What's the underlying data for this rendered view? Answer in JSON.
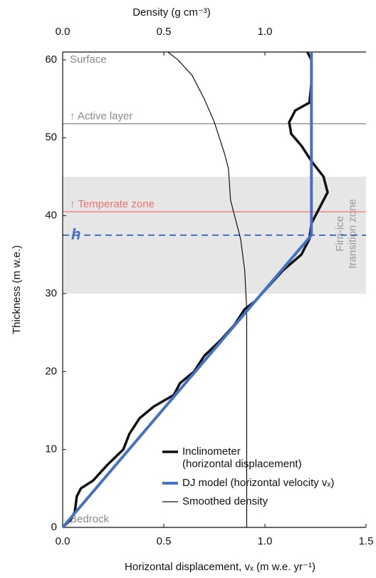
{
  "chart_data": {
    "type": "line",
    "xlabel": "Horizontal displacement, vₓ (m w.e. yr⁻¹)",
    "x2label": "Density (g cm⁻³)",
    "ylabel": "Thickness (m w.e.)",
    "xlim": [
      0,
      1.5
    ],
    "xticks": [
      {
        "value": 0,
        "label": "0.0"
      },
      {
        "value": 0.5,
        "label": "0.5"
      },
      {
        "value": 1,
        "label": "1.0"
      },
      {
        "value": 1.5,
        "label": "1.5"
      }
    ],
    "x2lim": [
      0,
      1.5
    ],
    "x2ticks": [
      {
        "value": 0,
        "label": "0.0"
      },
      {
        "value": 0.5,
        "label": "0.5"
      },
      {
        "value": 1,
        "label": "1.0"
      }
    ],
    "ylim": [
      0,
      61
    ],
    "yticks": [
      0,
      10,
      20,
      30,
      40,
      50,
      60
    ],
    "band": {
      "y": [
        30,
        45
      ],
      "color": "#e6e6e6",
      "label": "Firn-ice\ntransition zone"
    },
    "hlines": [
      {
        "label": "↑ Active layer",
        "y": 51.8,
        "color": "#888888"
      },
      {
        "label": "↑ Temperate zone",
        "y": 40.5,
        "color": "#f07070"
      },
      {
        "label": "h",
        "y": 37.5,
        "color": "#4472c4",
        "dashed": true
      }
    ],
    "annotations": [
      {
        "text": "Surface",
        "y": 60
      },
      {
        "text": "Bedrock",
        "y": 1
      }
    ],
    "series": [
      {
        "name": "Inclinometer\n(horizontal displacement)",
        "color": "#111111",
        "width": 3.5,
        "x": [
          0,
          0.04,
          0.06,
          0.07,
          0.09,
          0.15,
          0.22,
          0.3,
          0.33,
          0.38,
          0.45,
          0.55,
          0.58,
          0.65,
          0.7,
          0.78,
          0.85,
          0.9,
          0.95,
          1.02,
          1.09,
          1.18,
          1.22,
          1.23,
          1.27,
          1.31,
          1.29,
          1.23,
          1.18,
          1.13,
          1.12,
          1.15,
          1.22,
          1.23,
          1.23,
          1.21
        ],
        "values": [
          0,
          1,
          2,
          4,
          5,
          6,
          8,
          10,
          12,
          14,
          15.5,
          17,
          18.5,
          20,
          22,
          24,
          26,
          28,
          29,
          31,
          33,
          35,
          37,
          39,
          41,
          43,
          45,
          47,
          49,
          50.5,
          52,
          53.5,
          54.5,
          57,
          60,
          61
        ]
      },
      {
        "name": "DJ model (horizontal velocity vₓ)",
        "color": "#4472c4",
        "width": 4,
        "x": [
          0,
          1.23,
          1.23
        ],
        "values": [
          0,
          37.5,
          61
        ]
      },
      {
        "name": "Smoothed density",
        "color": "#111111",
        "width": 1.2,
        "axis": "x2",
        "x": [
          0.91,
          0.91,
          0.9,
          0.88,
          0.85,
          0.83,
          0.82,
          0.8,
          0.75,
          0.7,
          0.64,
          0.57,
          0.52
        ],
        "values": [
          0,
          28,
          33,
          37,
          40,
          42,
          46,
          48,
          52,
          55,
          58,
          60,
          61
        ]
      }
    ]
  }
}
